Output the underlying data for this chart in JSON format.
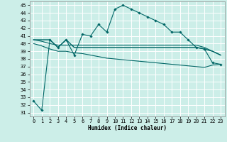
{
  "xlabel": "Humidex (Indice chaleur)",
  "bg_color": "#cceee8",
  "grid_color": "#ffffff",
  "line_color": "#006666",
  "xlim": [
    -0.5,
    23.5
  ],
  "ylim": [
    30.5,
    45.5
  ],
  "yticks": [
    31,
    32,
    33,
    34,
    35,
    36,
    37,
    38,
    39,
    40,
    41,
    42,
    43,
    44,
    45
  ],
  "xticks": [
    0,
    1,
    2,
    3,
    4,
    5,
    6,
    7,
    8,
    9,
    10,
    11,
    12,
    13,
    14,
    15,
    16,
    17,
    18,
    19,
    20,
    21,
    22,
    23
  ],
  "series1": [
    32.5,
    31.3,
    40.5,
    39.5,
    40.5,
    38.5,
    41.2,
    41.0,
    42.5,
    41.5,
    44.5,
    45.0,
    44.5,
    44.0,
    43.5,
    43.0,
    42.5,
    41.5,
    41.5,
    40.5,
    39.5,
    39.3,
    37.5,
    37.3
  ],
  "series2": [
    40.5,
    40.5,
    40.5,
    39.5,
    40.5,
    39.5,
    39.5,
    39.5,
    39.5,
    39.5,
    39.5,
    39.5,
    39.5,
    39.5,
    39.5,
    39.5,
    39.5,
    39.5,
    39.5,
    39.5,
    39.5,
    39.3,
    39.0,
    38.5
  ],
  "series3": [
    40.5,
    40.3,
    40.0,
    39.8,
    39.8,
    39.8,
    39.8,
    39.8,
    39.8,
    39.8,
    39.8,
    39.8,
    39.8,
    39.8,
    39.8,
    39.8,
    39.8,
    39.8,
    39.8,
    39.8,
    39.8,
    39.5,
    39.0,
    38.5
  ],
  "series4": [
    40.0,
    39.7,
    39.3,
    39.0,
    39.0,
    38.8,
    38.7,
    38.5,
    38.3,
    38.1,
    38.0,
    37.9,
    37.8,
    37.7,
    37.6,
    37.5,
    37.4,
    37.3,
    37.2,
    37.1,
    37.0,
    36.9,
    37.2,
    37.3
  ],
  "label_fontsize": 5.5,
  "tick_fontsize": 5
}
